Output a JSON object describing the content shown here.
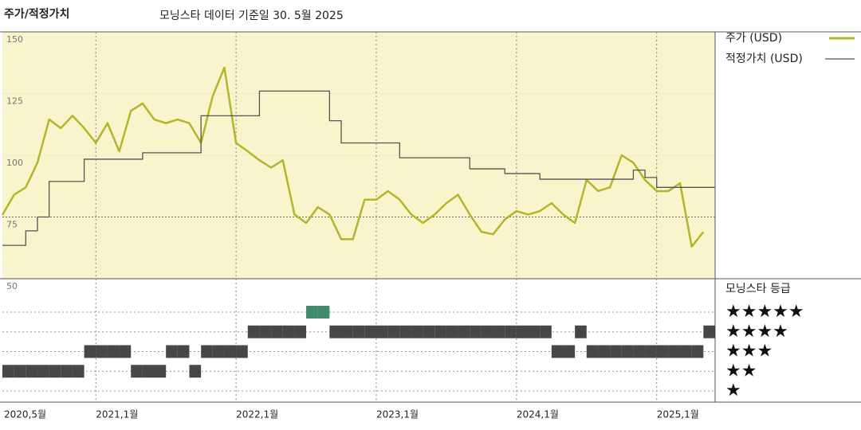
{
  "chart_data": {
    "type": "line",
    "title": "주가/적정가치",
    "subtitle": "모닝스타 데이터 기준일 30. 5월 2025",
    "x": [
      "2020-05",
      "2020-06",
      "2020-07",
      "2020-08",
      "2020-09",
      "2020-10",
      "2020-11",
      "2020-12",
      "2021-01",
      "2021-02",
      "2021-03",
      "2021-04",
      "2021-05",
      "2021-06",
      "2021-07",
      "2021-08",
      "2021-09",
      "2021-10",
      "2021-11",
      "2021-12",
      "2022-01",
      "2022-02",
      "2022-03",
      "2022-04",
      "2022-05",
      "2022-06",
      "2022-07",
      "2022-08",
      "2022-09",
      "2022-10",
      "2022-11",
      "2022-12",
      "2023-01",
      "2023-02",
      "2023-03",
      "2023-04",
      "2023-05",
      "2023-06",
      "2023-07",
      "2023-08",
      "2023-09",
      "2023-10",
      "2023-11",
      "2023-12",
      "2024-01",
      "2024-02",
      "2024-03",
      "2024-04",
      "2024-05",
      "2024-06",
      "2024-07",
      "2024-08",
      "2024-09",
      "2024-10",
      "2024-11",
      "2024-12",
      "2025-01",
      "2025-02",
      "2025-03",
      "2025-04",
      "2025-05"
    ],
    "series": [
      {
        "name": "주가 (USD)",
        "color": "#b3b52a",
        "values": [
          75.8,
          84,
          87,
          97,
          114.5,
          111,
          116,
          111,
          105,
          113,
          101.6,
          118,
          121,
          114.5,
          113,
          114.5,
          113,
          105,
          124,
          135.5,
          105,
          101.6,
          98,
          95,
          98,
          76,
          72.6,
          79,
          76,
          66,
          66,
          82,
          82,
          85.5,
          82,
          76,
          72.6,
          76,
          80.6,
          84,
          76,
          69,
          68,
          74,
          77.4,
          76,
          77.4,
          80.6,
          76,
          72.6,
          90,
          85.5,
          87,
          100,
          97,
          90,
          85.5,
          85.5,
          88.7,
          63,
          69
        ]
      },
      {
        "name": "적정가치 (USD)",
        "color": "#555555",
        "line_style": "step",
        "values": [
          63.5,
          63.5,
          69.4,
          75,
          89.4,
          89.4,
          89.4,
          98.4,
          98.4,
          98.4,
          98.4,
          98.4,
          101,
          101,
          101,
          101,
          101,
          116,
          116,
          116,
          116,
          116,
          126,
          126,
          126,
          126,
          126,
          126,
          114,
          105,
          105,
          105,
          105,
          105,
          99,
          99,
          99,
          99,
          99,
          99,
          94.5,
          94.5,
          94.5,
          92.6,
          92.6,
          92.6,
          90.3,
          90.3,
          90.3,
          90.3,
          90.3,
          90.3,
          90.3,
          90.3,
          94,
          91,
          87,
          87,
          87,
          87,
          87
        ]
      }
    ],
    "ylim": [
      50,
      150
    ],
    "yticks": [
      50,
      75,
      100,
      125,
      150
    ],
    "xlim": [
      "2020-05",
      "2025-06"
    ],
    "xticks": [
      {
        "value": "2020-05",
        "label": "2020,5월"
      },
      {
        "value": "2021-01",
        "label": "2021,1월"
      },
      {
        "value": "2022-01",
        "label": "2022,1월"
      },
      {
        "value": "2023-01",
        "label": "2023,1월"
      },
      {
        "value": "2024-01",
        "label": "2024,1월"
      },
      {
        "value": "2025-01",
        "label": "2025,1월"
      }
    ],
    "grid": true,
    "background": "#f8f5cc",
    "rating": {
      "title": "모닝스타 등급",
      "labels": [
        "★",
        "★★",
        "★★★",
        "★★★★",
        "★★★★★"
      ],
      "colors": [
        "#333333",
        "#333333",
        "#333333",
        "#333333",
        "#2e7d5b"
      ],
      "values": [
        2,
        2,
        2,
        2,
        2,
        2,
        2,
        3,
        3,
        3,
        3,
        2,
        2,
        2,
        3,
        3,
        2,
        3,
        3,
        3,
        3,
        4,
        4,
        4,
        4,
        4,
        5,
        5,
        4,
        4,
        4,
        4,
        4,
        4,
        4,
        4,
        4,
        4,
        4,
        4,
        4,
        4,
        4,
        4,
        4,
        4,
        4,
        3,
        3,
        4,
        3,
        3,
        3,
        3,
        3,
        3,
        3,
        3,
        3,
        3,
        4
      ]
    }
  }
}
